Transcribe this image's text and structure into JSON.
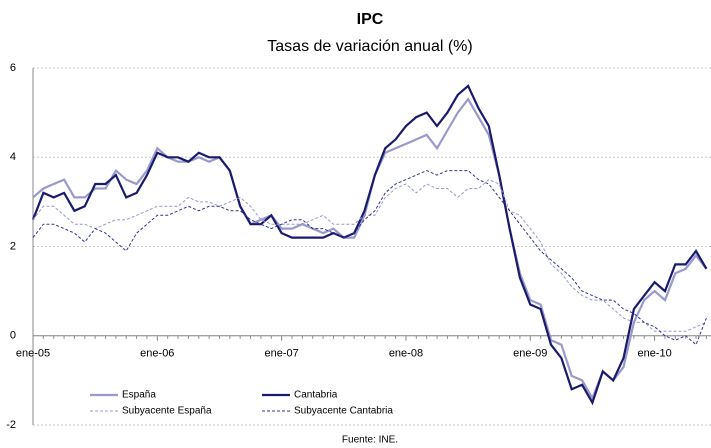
{
  "chart_data": {
    "type": "line",
    "title": "IPC",
    "subtitle": "Tasas de variación anual (%)",
    "source": "Fuente: INE.",
    "categories": [
      "ene-05",
      null,
      null,
      null,
      null,
      null,
      null,
      null,
      null,
      null,
      null,
      null,
      "ene-06",
      null,
      null,
      null,
      null,
      null,
      null,
      null,
      null,
      null,
      null,
      null,
      "ene-07",
      null,
      null,
      null,
      null,
      null,
      null,
      null,
      null,
      null,
      null,
      null,
      "ene-08",
      null,
      null,
      null,
      null,
      null,
      null,
      null,
      null,
      null,
      null,
      null,
      "ene-09",
      null,
      null,
      null,
      null,
      null,
      null,
      null,
      null,
      null,
      null,
      null,
      "ene-10",
      null,
      null,
      null,
      null,
      null
    ],
    "ylim": [
      -2,
      6
    ],
    "yticks": [
      -2,
      0,
      2,
      4,
      6
    ],
    "grid": true,
    "legend_position": "lower left",
    "series": [
      {
        "name": "España",
        "color": "#9999cc",
        "style": "solid",
        "values": [
          3.1,
          3.3,
          3.4,
          3.5,
          3.1,
          3.1,
          3.3,
          3.3,
          3.7,
          3.5,
          3.4,
          3.7,
          4.2,
          4.0,
          3.9,
          3.9,
          4.0,
          3.9,
          4.0,
          3.7,
          2.9,
          2.5,
          2.6,
          2.7,
          2.4,
          2.4,
          2.5,
          2.4,
          2.3,
          2.4,
          2.2,
          2.2,
          2.7,
          3.6,
          4.1,
          4.2,
          4.3,
          4.4,
          4.5,
          4.2,
          4.6,
          5.0,
          5.3,
          4.9,
          4.5,
          3.6,
          2.4,
          1.4,
          0.8,
          0.7,
          -0.1,
          -0.2,
          -0.9,
          -1.0,
          -1.4,
          -0.8,
          -1.0,
          -0.7,
          0.3,
          0.8,
          1.0,
          0.8,
          1.4,
          1.5,
          1.8,
          1.5
        ]
      },
      {
        "name": "Cantabria",
        "color": "#1a1a6e",
        "style": "solid",
        "values": [
          2.6,
          3.2,
          3.1,
          3.2,
          2.8,
          2.9,
          3.4,
          3.4,
          3.6,
          3.1,
          3.2,
          3.6,
          4.1,
          4.0,
          4.0,
          3.9,
          4.1,
          4.0,
          4.0,
          3.7,
          2.9,
          2.5,
          2.5,
          2.7,
          2.3,
          2.2,
          2.2,
          2.2,
          2.2,
          2.3,
          2.2,
          2.3,
          2.8,
          3.6,
          4.2,
          4.4,
          4.7,
          4.9,
          5.0,
          4.7,
          5.0,
          5.4,
          5.6,
          5.1,
          4.7,
          3.6,
          2.4,
          1.3,
          0.7,
          0.6,
          -0.2,
          -0.5,
          -1.2,
          -1.1,
          -1.5,
          -0.8,
          -1.0,
          -0.5,
          0.6,
          0.9,
          1.2,
          1.0,
          1.6,
          1.6,
          1.9,
          1.5
        ]
      },
      {
        "name": "Subyacente España",
        "color": "#9999cc",
        "style": "dashed",
        "values": [
          2.6,
          2.9,
          2.9,
          2.7,
          2.5,
          2.5,
          2.4,
          2.5,
          2.6,
          2.6,
          2.7,
          2.8,
          2.9,
          2.9,
          2.9,
          3.1,
          3.0,
          3.0,
          2.9,
          3.0,
          3.1,
          2.9,
          2.6,
          2.5,
          2.5,
          2.5,
          2.5,
          2.6,
          2.7,
          2.5,
          2.5,
          2.5,
          2.7,
          2.7,
          3.1,
          3.3,
          3.4,
          3.2,
          3.4,
          3.3,
          3.3,
          3.1,
          3.3,
          3.3,
          3.5,
          3.4,
          2.8,
          2.7,
          2.4,
          2.1,
          1.6,
          1.4,
          1.1,
          0.9,
          0.8,
          0.8,
          0.6,
          0.4,
          0.3,
          0.3,
          0.1,
          0.1,
          0.1,
          0.1,
          0.2,
          0.3
        ]
      },
      {
        "name": "Subyacente Cantabria",
        "color": "#333399",
        "style": "dashed",
        "values": [
          2.2,
          2.5,
          2.5,
          2.4,
          2.3,
          2.1,
          2.4,
          2.3,
          2.1,
          1.9,
          2.3,
          2.5,
          2.7,
          2.7,
          2.8,
          2.9,
          2.8,
          2.9,
          2.9,
          2.8,
          2.8,
          2.6,
          2.5,
          2.4,
          2.5,
          2.6,
          2.6,
          2.4,
          2.4,
          2.3,
          2.2,
          2.3,
          2.6,
          2.8,
          3.2,
          3.4,
          3.5,
          3.6,
          3.7,
          3.6,
          3.7,
          3.7,
          3.7,
          3.5,
          3.4,
          3.1,
          2.8,
          2.5,
          2.2,
          1.9,
          1.7,
          1.5,
          1.3,
          1.0,
          0.9,
          0.8,
          0.8,
          0.6,
          0.5,
          0.3,
          0.2,
          0.0,
          -0.1,
          0.0,
          -0.2,
          0.4
        ]
      }
    ]
  }
}
